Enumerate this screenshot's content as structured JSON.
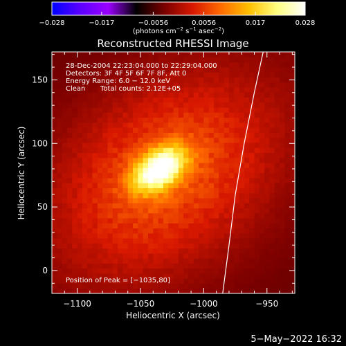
{
  "chart_data": {
    "type": "heatmap",
    "title": "Reconstructed RHESSI Image",
    "xlabel": "Heliocentric X (arcsec)",
    "ylabel": "Heliocentric Y (arcsec)",
    "xlim": [
      -1120,
      -928
    ],
    "ylim": [
      -18,
      172
    ],
    "x_ticks": [
      -1100,
      -1050,
      -1000,
      -950
    ],
    "x_tick_labels": [
      "−1100",
      "−1050",
      "−1000",
      "−950"
    ],
    "y_ticks": [
      0,
      50,
      100,
      150
    ],
    "y_tick_labels": [
      "0",
      "50",
      "100",
      "150"
    ],
    "colorbar": {
      "range": [
        -0.028,
        0.028
      ],
      "ticks": [
        -0.028,
        -0.017,
        -0.0056,
        0.0056,
        0.017,
        0.028
      ],
      "tick_labels": [
        "−0.028",
        "−0.017",
        "−0.0056",
        "0.0056",
        "0.017",
        "0.028"
      ],
      "unit_prefix": "(photons cm",
      "unit_exp1": "−2",
      "unit_mid": " s",
      "unit_exp2": "−1",
      "unit_mid2": " asec",
      "unit_exp3": "−2",
      "unit_suffix": ")",
      "colors": [
        "#0000ff",
        "#5b00ff",
        "#9b00ff",
        "#000000",
        "#7a0000",
        "#d81800",
        "#ff6a00",
        "#ffc000",
        "#ffff80",
        "#ffffff"
      ]
    },
    "info": {
      "time_range": "28-Dec-2004 22:23:04.000 to 22:29:04.000",
      "detectors": "Detectors: 3F 4F 5F 6F 7F 8F, Att 0",
      "energy": "Energy Range: 6.0 − 12.0 keV",
      "method": "Clean",
      "counts": "Total counts: 2.12E+05"
    },
    "peak_label": "Position of Peak = [−1035,80]",
    "peak": [
      -1035,
      80
    ],
    "source_level_max": 0.028,
    "background_level": -0.004,
    "limb": [
      [
        -985,
        -18
      ],
      [
        -980,
        20
      ],
      [
        -975,
        60
      ],
      [
        -968,
        100
      ],
      [
        -960,
        140
      ],
      [
        -953,
        172
      ]
    ]
  },
  "footer": {
    "timestamp": "5−May−2022 16:32"
  }
}
